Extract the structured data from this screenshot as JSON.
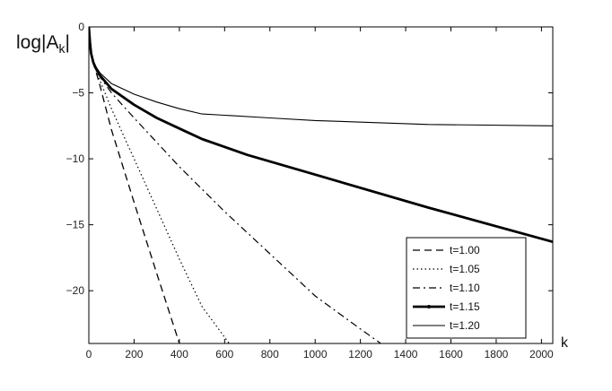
{
  "chart_data": {
    "type": "line",
    "ylabel_main": "log|A",
    "ylabel_sub": "k",
    "ylabel_tail": "|",
    "xlabel": "k",
    "xlim": [
      0,
      2050
    ],
    "ylim": [
      -24,
      0
    ],
    "xticks": [
      0,
      200,
      400,
      600,
      800,
      1000,
      1200,
      1400,
      1600,
      1800,
      2000
    ],
    "yticks": [
      0,
      -5,
      -10,
      -15,
      -20
    ],
    "grid": false,
    "legend_position": "bottom-right",
    "series": [
      {
        "name": "t=1.00",
        "style": "dashed",
        "x": [
          0,
          5,
          10,
          20,
          30,
          50,
          100,
          200,
          300,
          400
        ],
        "y": [
          0,
          -1.2,
          -2.0,
          -2.8,
          -3.3,
          -4.5,
          -7.8,
          -13.3,
          -18.7,
          -24
        ]
      },
      {
        "name": "t=1.05",
        "style": "dotted",
        "x": [
          0,
          5,
          10,
          20,
          30,
          50,
          100,
          200,
          300,
          400,
          500,
          620
        ],
        "y": [
          0,
          -1.2,
          -2.0,
          -2.8,
          -3.2,
          -4.1,
          -6.2,
          -10.0,
          -13.8,
          -17.6,
          -21.2,
          -24
        ]
      },
      {
        "name": "t=1.10",
        "style": "dashdot",
        "x": [
          0,
          5,
          10,
          20,
          30,
          50,
          100,
          200,
          400,
          600,
          800,
          1000,
          1200,
          1290
        ],
        "y": [
          0,
          -1.2,
          -2.0,
          -2.8,
          -3.2,
          -3.8,
          -5.0,
          -6.9,
          -10.6,
          -14.0,
          -17.2,
          -20.4,
          -22.9,
          -24
        ]
      },
      {
        "name": "t=1.15",
        "style": "thick",
        "x": [
          0,
          5,
          10,
          20,
          30,
          50,
          100,
          200,
          300,
          400,
          500,
          600,
          700,
          1000,
          1500,
          2050
        ],
        "y": [
          0,
          -1.2,
          -2.0,
          -2.7,
          -3.1,
          -3.7,
          -4.7,
          -5.9,
          -6.9,
          -7.7,
          -8.5,
          -9.1,
          -9.7,
          -11.2,
          -13.7,
          -16.3
        ]
      },
      {
        "name": "t=1.20",
        "style": "solid",
        "x": [
          0,
          5,
          10,
          20,
          30,
          50,
          100,
          200,
          300,
          400,
          500,
          600,
          800,
          1000,
          1500,
          2050
        ],
        "y": [
          0,
          -1.2,
          -1.9,
          -2.6,
          -3.0,
          -3.5,
          -4.3,
          -5.1,
          -5.7,
          -6.2,
          -6.6,
          -6.7,
          -6.9,
          -7.1,
          -7.4,
          -7.5
        ]
      }
    ]
  }
}
